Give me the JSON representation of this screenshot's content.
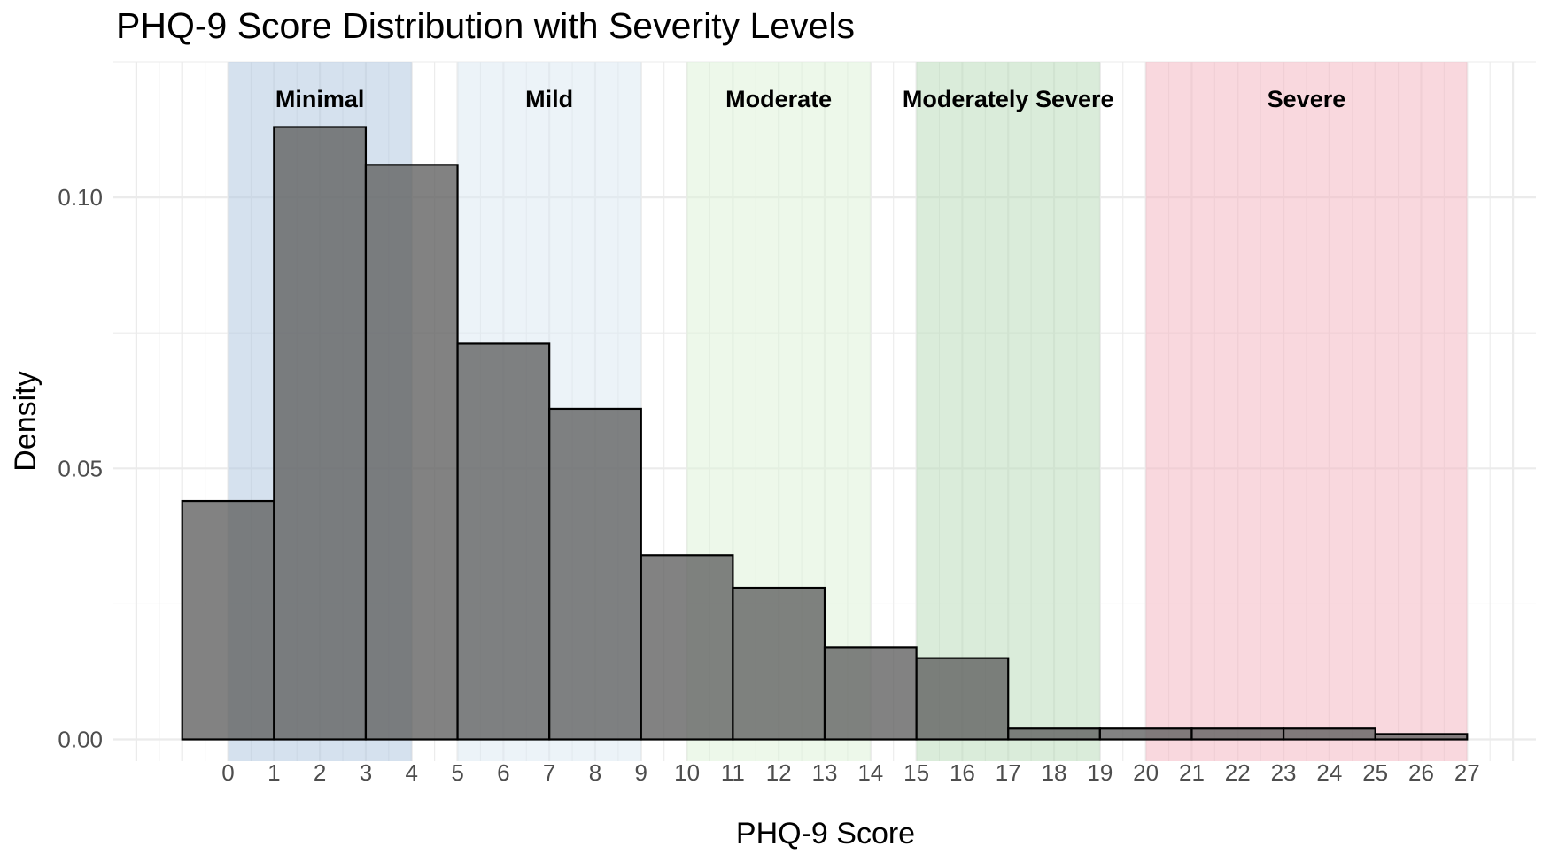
{
  "chart_data": {
    "type": "bar",
    "title": "PHQ-9 Score Distribution with Severity Levels",
    "xlabel": "PHQ-9 Score",
    "ylabel": "Density",
    "xlim": [
      -2.5,
      28.5
    ],
    "ylim": [
      -0.004,
      0.125
    ],
    "x_ticks": [
      0,
      1,
      2,
      3,
      4,
      5,
      6,
      7,
      8,
      9,
      10,
      11,
      12,
      13,
      14,
      15,
      16,
      17,
      18,
      19,
      20,
      21,
      22,
      23,
      24,
      25,
      26,
      27
    ],
    "y_ticks": [
      0.0,
      0.05,
      0.1
    ],
    "y_tick_labels": [
      "0.00",
      "0.05",
      "0.10"
    ],
    "grid": true,
    "bins": [
      {
        "x0": -1,
        "x1": 1,
        "density": 0.044
      },
      {
        "x0": 1,
        "x1": 3,
        "density": 0.113
      },
      {
        "x0": 3,
        "x1": 5,
        "density": 0.106
      },
      {
        "x0": 5,
        "x1": 7,
        "density": 0.073
      },
      {
        "x0": 7,
        "x1": 9,
        "density": 0.061
      },
      {
        "x0": 9,
        "x1": 11,
        "density": 0.034
      },
      {
        "x0": 11,
        "x1": 13,
        "density": 0.028
      },
      {
        "x0": 13,
        "x1": 15,
        "density": 0.017
      },
      {
        "x0": 15,
        "x1": 17,
        "density": 0.015
      },
      {
        "x0": 17,
        "x1": 19,
        "density": 0.002
      },
      {
        "x0": 19,
        "x1": 21,
        "density": 0.002
      },
      {
        "x0": 21,
        "x1": 23,
        "density": 0.002
      },
      {
        "x0": 23,
        "x1": 25,
        "density": 0.002
      },
      {
        "x0": 25,
        "x1": 27,
        "density": 0.001
      }
    ],
    "bar_fill": "#5f5f5f",
    "bar_stroke": "#000000",
    "severity_bands": [
      {
        "label": "Minimal",
        "x0": 0,
        "x1": 4,
        "color": "#b3c8e0"
      },
      {
        "label": "Mild",
        "x0": 5,
        "x1": 9,
        "color": "#dce9f2"
      },
      {
        "label": "Moderate",
        "x0": 10,
        "x1": 14,
        "color": "#dff2d8"
      },
      {
        "label": "Moderately Severe",
        "x0": 15,
        "x1": 19,
        "color": "#bcdcbc"
      },
      {
        "label": "Severe",
        "x0": 20,
        "x1": 27,
        "color": "#f4b8c2"
      }
    ]
  }
}
